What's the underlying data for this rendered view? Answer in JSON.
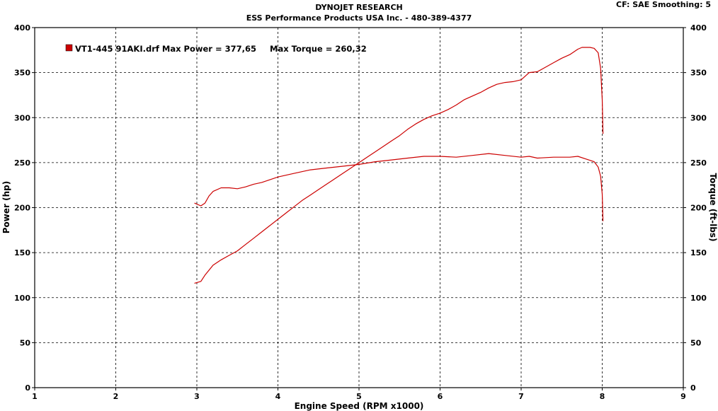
{
  "header": {
    "title_line1": "DYNOJET RESEARCH",
    "title_line2": "ESS Performance Products USA Inc. - 480-389-4377",
    "cf_label": "CF: SAE  Smoothing: 5"
  },
  "legend": {
    "run_label": "VT1-445 91AKI.drf Max Power = 377,65",
    "torque_label": "Max Torque = 260,32",
    "color": "#cc0000"
  },
  "chart_data": {
    "type": "line",
    "title": "DYNOJET RESEARCH",
    "subtitle": "ESS Performance Products USA Inc. - 480-389-4377",
    "xlabel": "Engine Speed (RPM x1000)",
    "ylabel": "Power (hp)",
    "y2label": "Torque (ft-lbs)",
    "xlim": [
      1,
      9
    ],
    "ylim": [
      0,
      400
    ],
    "y2lim": [
      0,
      400
    ],
    "x_ticks": [
      "1",
      "2",
      "3",
      "4",
      "5",
      "6",
      "7",
      "8",
      "9"
    ],
    "y_ticks": [
      "0",
      "50",
      "100",
      "150",
      "200",
      "250",
      "300",
      "350",
      "400"
    ],
    "grid": true,
    "legend_position": "top-left",
    "series": [
      {
        "name": "VT1-445 91AKI.drf",
        "kind": "power",
        "color": "#cc0000",
        "x": [
          2.97,
          3.05,
          3.1,
          3.2,
          3.3,
          3.4,
          3.5,
          3.6,
          3.7,
          3.8,
          3.9,
          4.0,
          4.1,
          4.2,
          4.3,
          4.4,
          4.5,
          4.6,
          4.7,
          4.8,
          4.9,
          5.0,
          5.1,
          5.2,
          5.3,
          5.4,
          5.5,
          5.6,
          5.7,
          5.8,
          5.9,
          6.0,
          6.1,
          6.2,
          6.3,
          6.4,
          6.5,
          6.6,
          6.7,
          6.8,
          6.9,
          7.0,
          7.1,
          7.2,
          7.3,
          7.4,
          7.5,
          7.6,
          7.7,
          7.75,
          7.8,
          7.85,
          7.9,
          7.95,
          7.98,
          8.0,
          8.01
        ],
        "y": [
          116,
          118,
          125,
          136,
          142,
          147,
          152,
          159,
          166,
          173,
          180,
          187,
          194,
          201,
          208,
          214,
          220,
          226,
          232,
          238,
          244,
          250,
          256,
          262,
          268,
          274,
          280,
          287,
          293,
          298,
          302,
          305,
          309,
          314,
          320,
          324,
          328,
          333,
          337,
          339,
          340,
          342,
          350,
          351,
          356,
          361,
          366,
          370,
          376,
          378,
          378,
          378,
          377,
          372,
          355,
          320,
          282
        ]
      },
      {
        "name": "VT1-445 91AKI.drf",
        "kind": "torque",
        "color": "#cc0000",
        "x": [
          2.97,
          3.05,
          3.1,
          3.15,
          3.2,
          3.3,
          3.4,
          3.5,
          3.6,
          3.7,
          3.8,
          3.9,
          4.0,
          4.2,
          4.4,
          4.6,
          4.8,
          5.0,
          5.2,
          5.4,
          5.6,
          5.8,
          6.0,
          6.2,
          6.4,
          6.6,
          6.8,
          7.0,
          7.1,
          7.2,
          7.4,
          7.6,
          7.7,
          7.8,
          7.9,
          7.95,
          7.98,
          8.0,
          8.01
        ],
        "y": [
          205,
          202,
          205,
          213,
          218,
          222,
          222,
          221,
          223,
          226,
          228,
          231,
          234,
          238,
          242,
          244,
          246,
          248,
          251,
          253,
          255,
          257,
          257,
          256,
          258,
          260,
          258,
          256,
          257,
          255,
          256,
          256,
          257,
          254,
          251,
          245,
          235,
          215,
          185
        ]
      }
    ]
  }
}
